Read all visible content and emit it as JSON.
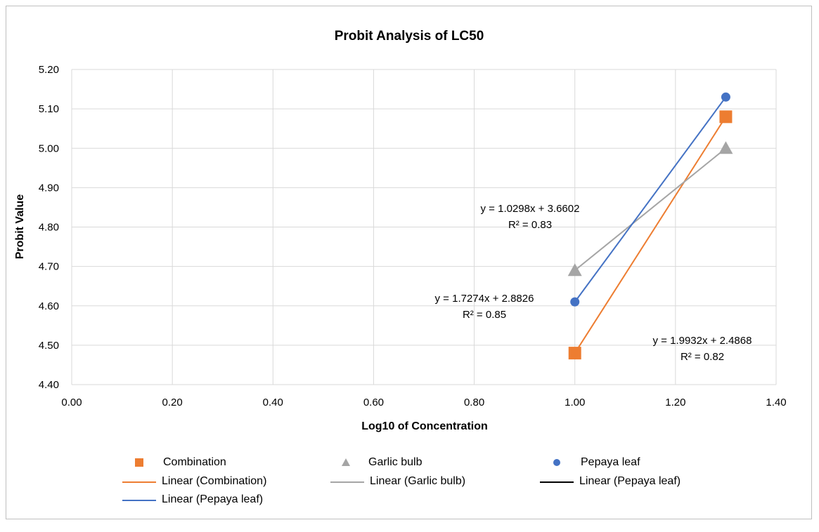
{
  "chart_data": {
    "type": "scatter",
    "title": "Probit Analysis of LC50",
    "xlabel": "Log10 of Concentration",
    "ylabel": "Probit Value",
    "xlim": [
      0.0,
      1.4
    ],
    "ylim": [
      4.4,
      5.2
    ],
    "x_ticks": [
      "0.00",
      "0.20",
      "0.40",
      "0.60",
      "0.80",
      "1.00",
      "1.20",
      "1.40"
    ],
    "y_ticks": [
      "4.40",
      "4.50",
      "4.60",
      "4.70",
      "4.80",
      "4.90",
      "5.00",
      "5.10",
      "5.20"
    ],
    "grid": true,
    "legend_position": "bottom",
    "series": [
      {
        "name": "Combination",
        "marker": "square",
        "color": "#ed7d31",
        "x": [
          1.0,
          1.3
        ],
        "y": [
          4.48,
          5.08
        ]
      },
      {
        "name": "Garlic bulb",
        "marker": "triangle",
        "color": "#a5a5a5",
        "x": [
          1.0,
          1.3
        ],
        "y": [
          4.69,
          5.0
        ]
      },
      {
        "name": "Pepaya leaf",
        "marker": "circle",
        "color": "#4472c4",
        "x": [
          1.0,
          1.3
        ],
        "y": [
          4.61,
          5.13
        ]
      }
    ],
    "trendlines": [
      {
        "name": "Linear (Combination)",
        "color": "#ed7d31",
        "x": [
          1.0,
          1.3
        ],
        "y": [
          4.48,
          5.08
        ]
      },
      {
        "name": "Linear (Garlic bulb)",
        "color": "#a5a5a5",
        "x": [
          1.0,
          1.3
        ],
        "y": [
          4.69,
          5.0
        ]
      },
      {
        "name": "Linear (Pepaya leaf)",
        "color": "#000000",
        "x": [],
        "y": []
      },
      {
        "name": "Linear (Pepaya leaf)",
        "color": "#4472c4",
        "x": [
          1.0,
          1.3
        ],
        "y": [
          4.61,
          5.13
        ]
      }
    ],
    "annotations": [
      {
        "line1": "y = 1.0298x + 3.6602",
        "line2": "R² = 0.83"
      },
      {
        "line1": "y = 1.7274x + 2.8826",
        "line2": "R² = 0.85"
      },
      {
        "line1": "y = 1.9932x + 2.4868",
        "line2": "R² = 0.82"
      }
    ]
  }
}
